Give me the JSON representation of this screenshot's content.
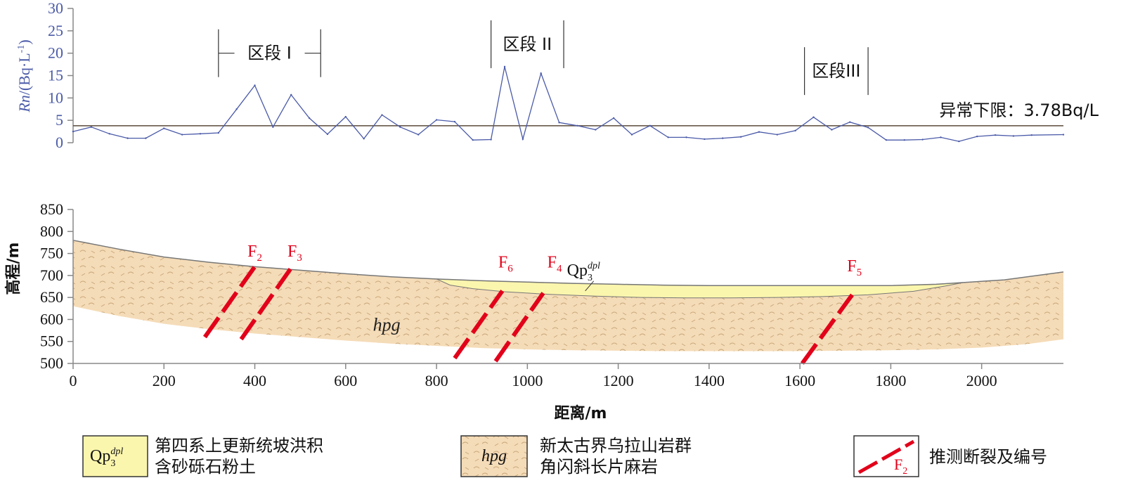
{
  "chart_data": [
    {
      "type": "line",
      "ylabel_italic": "Rn",
      "ylabel_rest": "/(Bq·L",
      "ylabel_sup": "-1",
      "ylabel_close": ")",
      "ylim": [
        0,
        30
      ],
      "yticks": [
        "0",
        "5",
        "10",
        "15",
        "20",
        "25",
        "30"
      ],
      "xlim": [
        0,
        2180
      ],
      "series": [
        {
          "color": "#4a5aa8",
          "x": [
            0,
            40,
            80,
            120,
            160,
            200,
            240,
            280,
            320,
            360,
            400,
            440,
            480,
            520,
            560,
            600,
            640,
            680,
            720,
            760,
            800,
            840,
            880,
            920,
            950,
            990,
            1030,
            1070,
            1110,
            1150,
            1190,
            1230,
            1270,
            1310,
            1350,
            1390,
            1430,
            1470,
            1510,
            1550,
            1590,
            1630,
            1670,
            1710,
            1750,
            1790,
            1830,
            1870,
            1910,
            1950,
            1990,
            2030,
            2070,
            2110,
            2180
          ],
          "values": [
            2.5,
            3.5,
            2.0,
            1.0,
            1.0,
            3.2,
            1.8,
            2.0,
            2.2,
            7.5,
            12.8,
            3.5,
            10.7,
            5.5,
            1.9,
            5.8,
            0.9,
            6.2,
            3.5,
            1.8,
            5.1,
            4.7,
            0.6,
            0.7,
            17.0,
            0.8,
            15.5,
            4.5,
            3.8,
            2.9,
            5.5,
            1.8,
            3.8,
            1.2,
            1.2,
            0.8,
            1.0,
            1.3,
            2.4,
            1.8,
            2.7,
            5.7,
            2.9,
            4.6,
            3.4,
            0.6,
            0.6,
            0.7,
            1.2,
            0.3,
            1.4,
            1.7,
            1.5,
            1.7,
            1.8
          ]
        }
      ],
      "threshold": {
        "value": 3.78,
        "label": "异常下限：3.78Bq/L"
      },
      "annotations": [
        {
          "label": "区段 I",
          "x_start": 320,
          "x_end": 545,
          "y": 20
        },
        {
          "label": "区段 II",
          "x_start": 920,
          "x_end": 1080,
          "y": 22
        },
        {
          "label": "区段III",
          "x_start": 1610,
          "x_end": 1750,
          "y": 16
        }
      ]
    },
    {
      "type": "area",
      "ylabel": "高程/m",
      "xlabel": "距离/m",
      "ylim": [
        500,
        850
      ],
      "yticks": [
        "500",
        "550",
        "600",
        "650",
        "700",
        "750",
        "800",
        "850"
      ],
      "xlim": [
        0,
        2180
      ],
      "xticks": [
        "0",
        "200",
        "400",
        "600",
        "800",
        "1000",
        "1200",
        "1400",
        "1600",
        "1800",
        "2000"
      ],
      "ground_surface": {
        "x": [
          0,
          100,
          200,
          300,
          400,
          500,
          600,
          700,
          800,
          900,
          1000,
          1100,
          1200,
          1300,
          1400,
          1500,
          1600,
          1700,
          1800,
          1900,
          1960,
          2050,
          2180
        ],
        "y": [
          780,
          760,
          742,
          730,
          720,
          712,
          704,
          697,
          692,
          688,
          685,
          682,
          680,
          678,
          677,
          677,
          677,
          677,
          677,
          680,
          684,
          690,
          708
        ]
      },
      "hpg_base": {
        "x": [
          0,
          100,
          200,
          300,
          400,
          500,
          600,
          700,
          800,
          900,
          1000,
          1100,
          1200,
          1300,
          1400,
          1500,
          1600,
          1700,
          1800,
          1900,
          2000,
          2100,
          2180
        ],
        "y": [
          630,
          608,
          590,
          578,
          568,
          560,
          552,
          545,
          540,
          535,
          532,
          530,
          529,
          528,
          528,
          528,
          528,
          529,
          530,
          532,
          536,
          544,
          555
        ]
      },
      "qp_base": {
        "x": [
          800,
          830,
          880,
          950,
          1050,
          1150,
          1250,
          1350,
          1450,
          1550,
          1650,
          1750,
          1850,
          1920,
          1960
        ],
        "y": [
          692,
          678,
          670,
          663,
          657,
          653,
          650,
          649,
          649,
          650,
          652,
          656,
          664,
          676,
          684
        ]
      },
      "layers": [
        {
          "code": "Qp",
          "sub": "3",
          "sup": "dpl",
          "color": "#fbf6ad",
          "label_x": 1180,
          "label_y": 700
        },
        {
          "code": "hpg",
          "color": "#f5dcb8",
          "label_x": 660,
          "label_y": 574
        }
      ],
      "faults": [
        {
          "name": "F",
          "sub": "2",
          "x1": 290,
          "y1": 560,
          "x2": 400,
          "y2": 720,
          "label_x": 400,
          "label_y": 743
        },
        {
          "name": "F",
          "sub": "3",
          "x1": 370,
          "y1": 555,
          "x2": 480,
          "y2": 717,
          "label_x": 488,
          "label_y": 743
        },
        {
          "name": "F",
          "sub": "6",
          "x1": 840,
          "y1": 512,
          "x2": 945,
          "y2": 665,
          "label_x": 952,
          "label_y": 718
        },
        {
          "name": "F",
          "sub": "4",
          "x1": 930,
          "y1": 505,
          "x2": 1035,
          "y2": 660,
          "label_x": 1060,
          "label_y": 718
        },
        {
          "name": "F",
          "sub": "5",
          "x1": 1605,
          "y1": 500,
          "x2": 1715,
          "y2": 656,
          "label_x": 1720,
          "label_y": 709
        }
      ]
    }
  ],
  "legend": [
    {
      "swatch_code": "Qp",
      "swatch_sub": "3",
      "swatch_sup": "dpl",
      "color": "#fbf6ad",
      "line1": "第四系上更新统坡洪积",
      "line2": "含砂砾石粉土"
    },
    {
      "swatch_code": "hpg",
      "color": "#f5dcb8",
      "line1": "新太古界乌拉山岩群",
      "line2": "角闪斜长片麻岩"
    },
    {
      "swatch_fault": "F",
      "swatch_fault_sub": "2",
      "line1": "推测断裂及编号"
    }
  ],
  "colors": {
    "axis": "#888888",
    "threshold": "#5a4a3a",
    "fault": "#e2001a",
    "rn_axis_text": "#4a5aa8"
  }
}
